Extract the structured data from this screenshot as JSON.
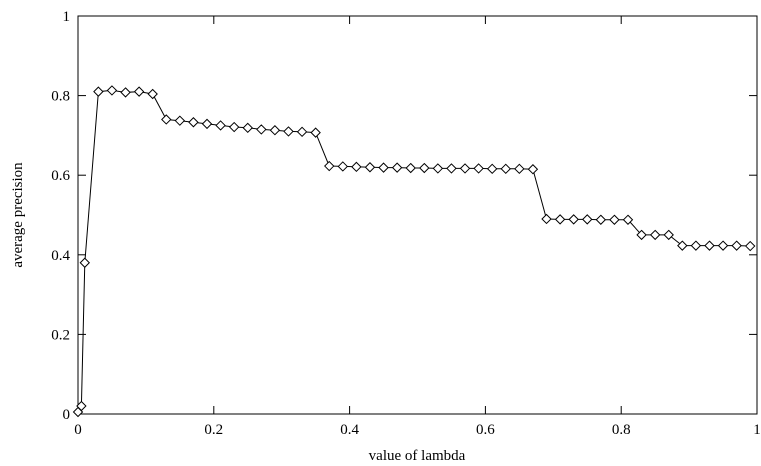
{
  "chart_data": {
    "type": "line",
    "title": "",
    "xlabel": "value of lambda",
    "ylabel": "average precision",
    "xlim": [
      0,
      1
    ],
    "ylim": [
      0,
      1
    ],
    "xticks": [
      "0",
      "0.2",
      "0.4",
      "0.6",
      "0.8",
      "1"
    ],
    "yticks": [
      "0",
      "0.2",
      "0.4",
      "0.6",
      "0.8",
      "1"
    ],
    "grid": false,
    "legend": "none",
    "marker": "diamond",
    "line_color": "#000000",
    "series": [
      {
        "x": [
          0,
          0.005,
          0.01,
          0.03,
          0.05,
          0.07,
          0.09,
          0.11,
          0.13,
          0.15,
          0.17,
          0.19,
          0.21,
          0.23,
          0.25,
          0.27,
          0.29,
          0.31,
          0.33,
          0.35,
          0.37,
          0.39,
          0.41,
          0.43,
          0.45,
          0.47,
          0.49,
          0.51,
          0.53,
          0.55,
          0.57,
          0.59,
          0.61,
          0.63,
          0.65,
          0.67,
          0.69,
          0.71,
          0.73,
          0.75,
          0.77,
          0.79,
          0.81,
          0.83,
          0.85,
          0.87,
          0.89,
          0.91,
          0.93,
          0.95,
          0.97,
          0.99
        ],
        "y": [
          0.005,
          0.02,
          0.38,
          0.81,
          0.813,
          0.808,
          0.81,
          0.804,
          0.74,
          0.737,
          0.733,
          0.729,
          0.725,
          0.721,
          0.719,
          0.715,
          0.713,
          0.71,
          0.709,
          0.707,
          0.623,
          0.622,
          0.621,
          0.62,
          0.619,
          0.619,
          0.618,
          0.618,
          0.617,
          0.617,
          0.617,
          0.617,
          0.616,
          0.616,
          0.616,
          0.615,
          0.49,
          0.489,
          0.489,
          0.489,
          0.488,
          0.488,
          0.488,
          0.45,
          0.45,
          0.45,
          0.423,
          0.423,
          0.423,
          0.423,
          0.423,
          0.422
        ]
      }
    ]
  }
}
